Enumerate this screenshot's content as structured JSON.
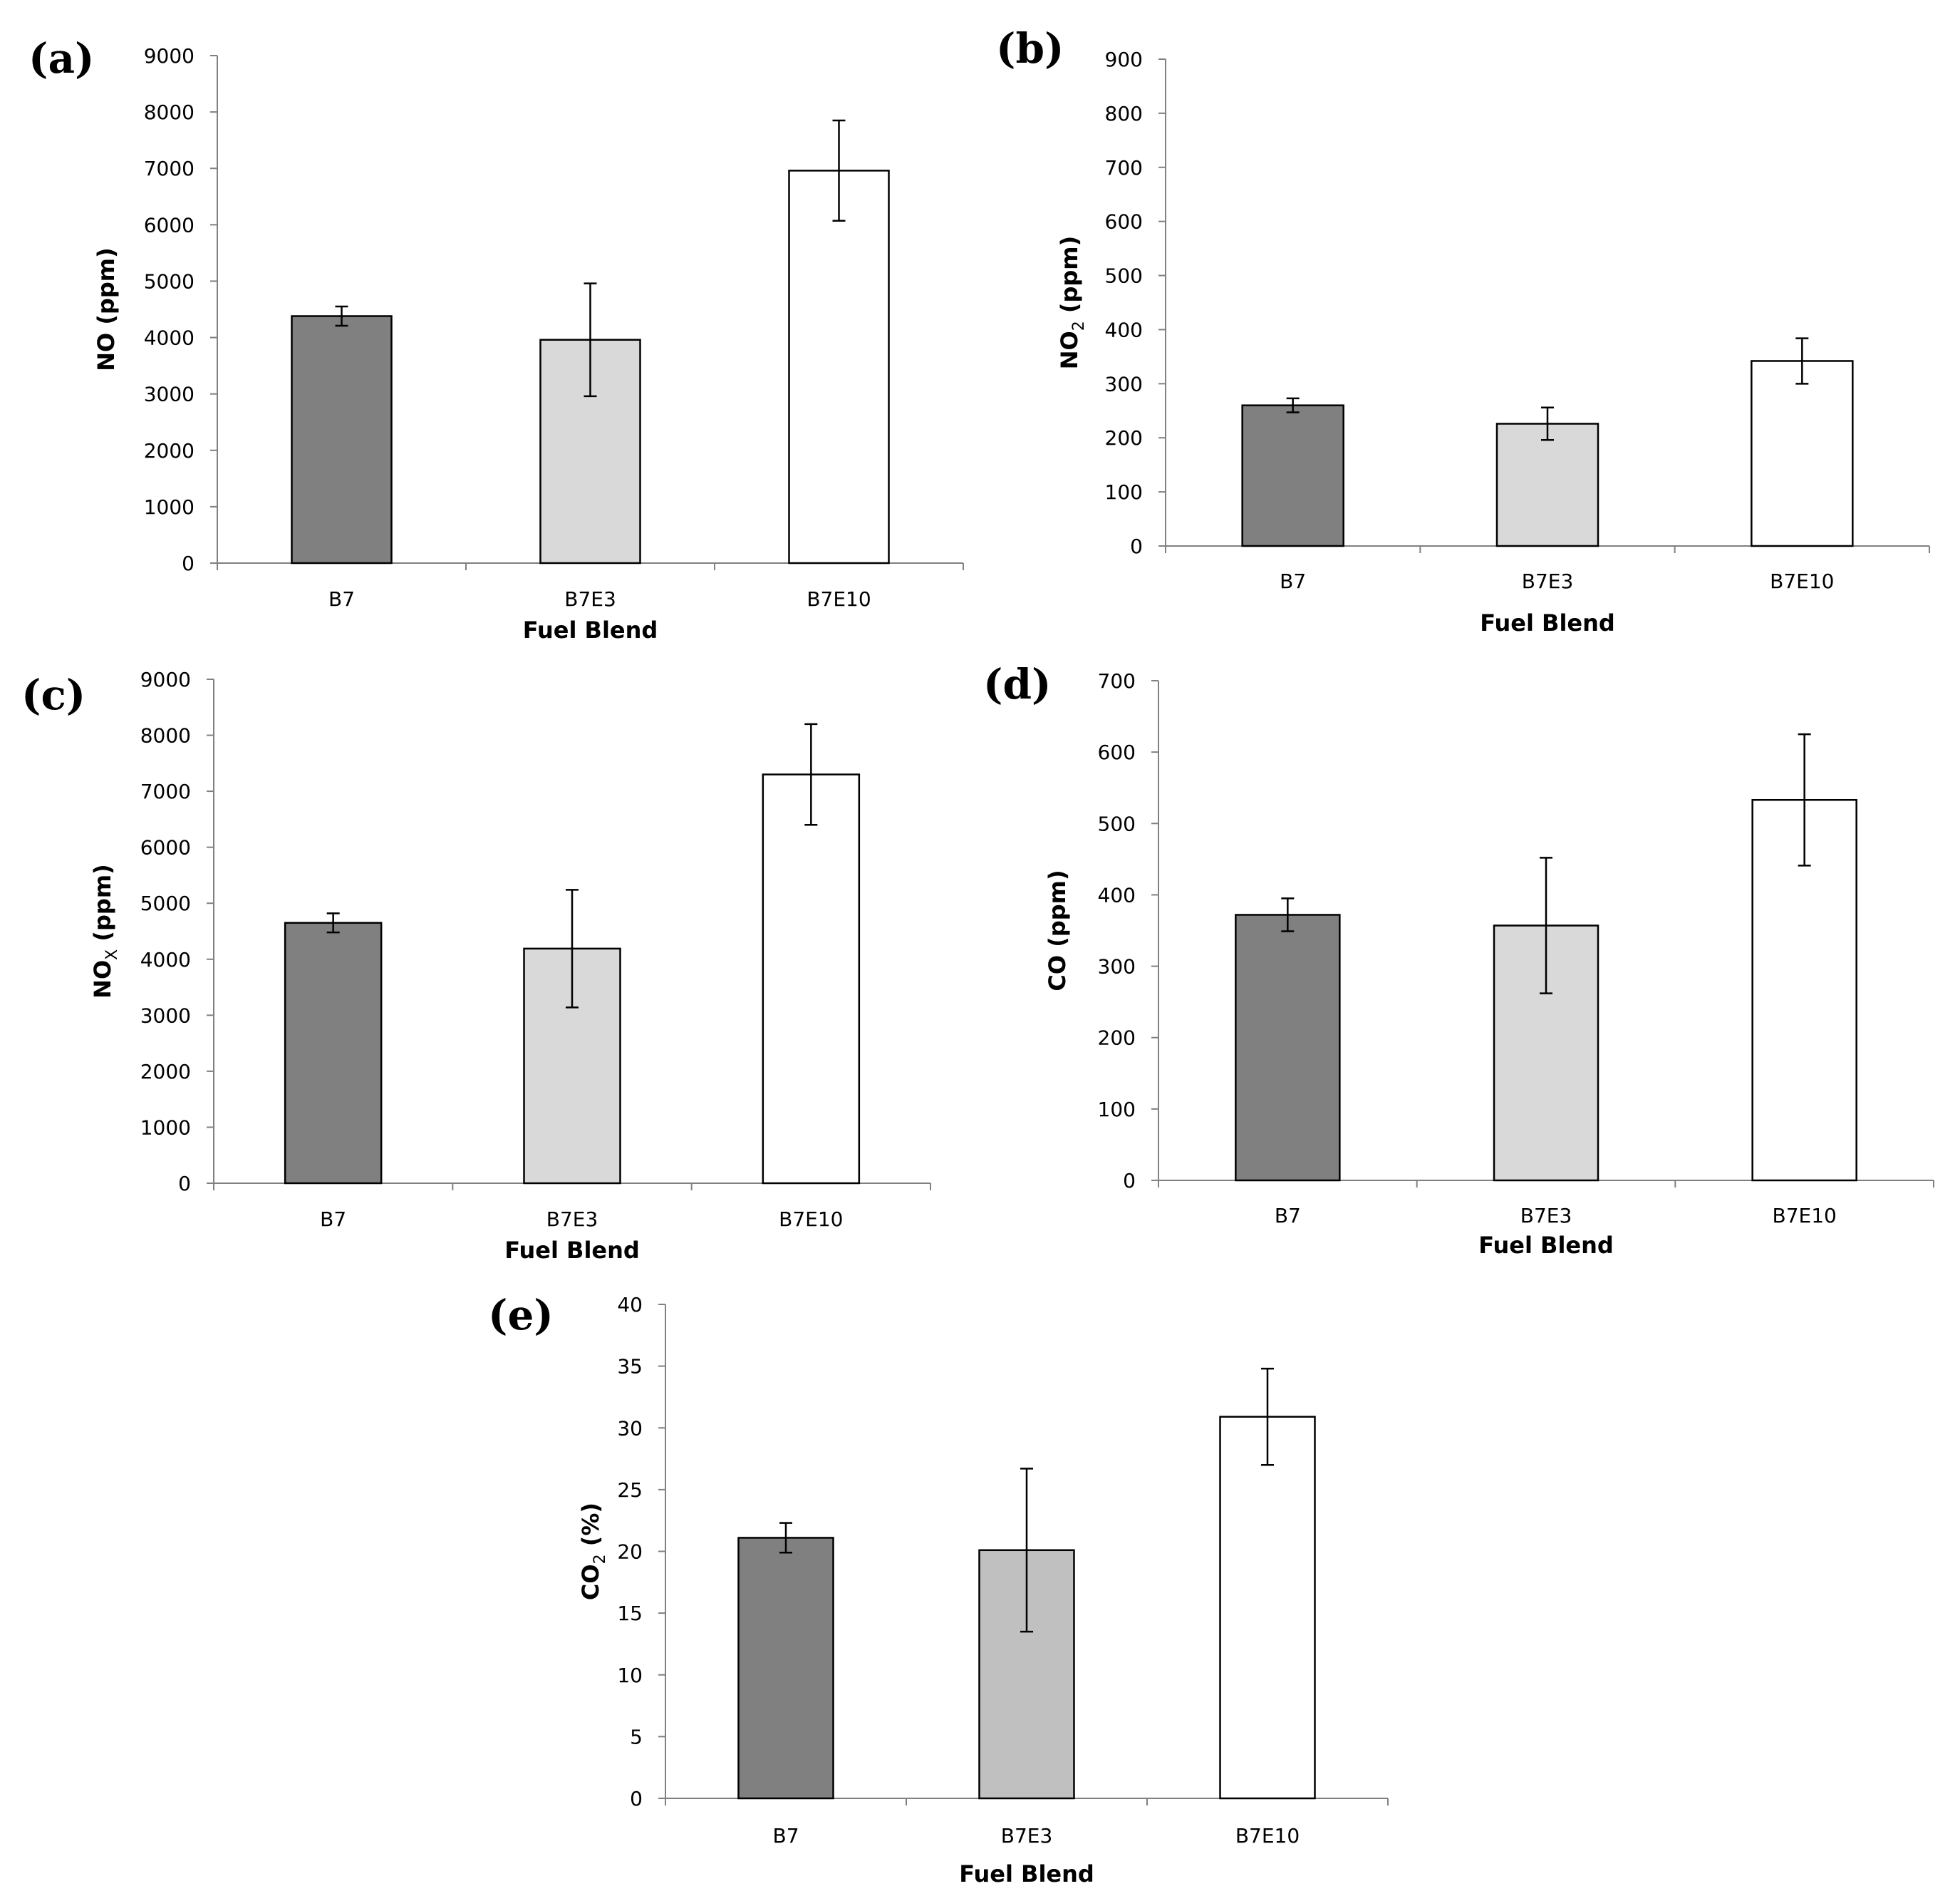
{
  "chart_data": [
    {
      "panel": "(a)",
      "type": "bar",
      "categories": [
        "B7",
        "B7E3",
        "B7E10"
      ],
      "values": [
        4380,
        3960,
        6960
      ],
      "errors": [
        170,
        1000,
        890
      ],
      "bar_colors": [
        "#808080",
        "#d9d9d9",
        "#ffffff"
      ],
      "ylim": [
        0,
        9000
      ],
      "yticks": [
        "0",
        "1000",
        "2000",
        "3000",
        "4000",
        "5000",
        "6000",
        "7000",
        "8000",
        "9000"
      ],
      "ylabel": "NO (ppm)",
      "ylabel_sub": "",
      "ylabel_post": "",
      "xlabel": "Fuel Blend"
    },
    {
      "panel": "(b)",
      "type": "bar",
      "categories": [
        "B7",
        "B7E3",
        "B7E10"
      ],
      "values": [
        260,
        226,
        342
      ],
      "errors": [
        13,
        30,
        42
      ],
      "bar_colors": [
        "#808080",
        "#d9d9d9",
        "#ffffff"
      ],
      "ylim": [
        0,
        900
      ],
      "yticks": [
        "0",
        "100",
        "200",
        "300",
        "400",
        "500",
        "600",
        "700",
        "800",
        "900"
      ],
      "ylabel": "NO",
      "ylabel_sub": "2",
      "ylabel_post": " (ppm)",
      "xlabel": "Fuel Blend"
    },
    {
      "panel": "(c)",
      "type": "bar",
      "categories": [
        "B7",
        "B7E3",
        "B7E10"
      ],
      "values": [
        4650,
        4190,
        7300
      ],
      "errors": [
        170,
        1050,
        900
      ],
      "bar_colors": [
        "#808080",
        "#d9d9d9",
        "#ffffff"
      ],
      "ylim": [
        0,
        9000
      ],
      "yticks": [
        "0",
        "1000",
        "2000",
        "3000",
        "4000",
        "5000",
        "6000",
        "7000",
        "8000",
        "9000"
      ],
      "ylabel": "NO",
      "ylabel_sub": "X",
      "ylabel_post": " (ppm)",
      "xlabel": "Fuel Blend"
    },
    {
      "panel": "(d)",
      "type": "bar",
      "categories": [
        "B7",
        "B7E3",
        "B7E10"
      ],
      "values": [
        372,
        357,
        533
      ],
      "errors": [
        23,
        95,
        92
      ],
      "bar_colors": [
        "#808080",
        "#d9d9d9",
        "#ffffff"
      ],
      "ylim": [
        0,
        700
      ],
      "yticks": [
        "0",
        "100",
        "200",
        "300",
        "400",
        "500",
        "600",
        "700"
      ],
      "ylabel": "CO (ppm)",
      "ylabel_sub": "",
      "ylabel_post": "",
      "xlabel": "Fuel Blend"
    },
    {
      "panel": "(e)",
      "type": "bar",
      "categories": [
        "B7",
        "B7E3",
        "B7E10"
      ],
      "values": [
        21.1,
        20.1,
        30.9
      ],
      "errors": [
        1.2,
        6.6,
        3.9
      ],
      "bar_colors": [
        "#808080",
        "#c0c0c0",
        "#ffffff"
      ],
      "ylim": [
        0,
        40
      ],
      "yticks": [
        "0",
        "5",
        "10",
        "15",
        "20",
        "25",
        "30",
        "35",
        "40"
      ],
      "ylabel": "CO",
      "ylabel_sub": "2",
      "ylabel_post": " (%)",
      "xlabel": "Fuel Blend"
    }
  ]
}
